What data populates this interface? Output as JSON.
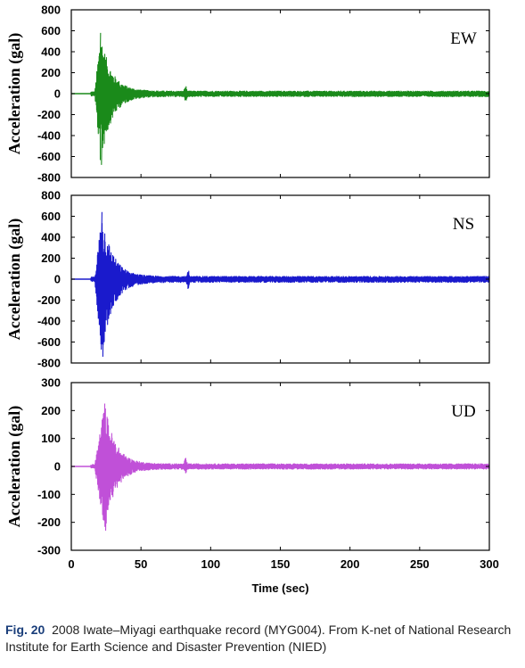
{
  "chart_data": {
    "type": "line",
    "xlabel": "Time (sec)",
    "xlim": [
      0,
      300
    ],
    "xticks": [
      "0",
      "50",
      "100",
      "150",
      "200",
      "250",
      "300"
    ],
    "panels": [
      {
        "component": "EW",
        "ylabel": "Acceleration (gal)",
        "ylim": [
          -800,
          800
        ],
        "yticks": [
          "800",
          "600",
          "400",
          "200",
          "0",
          "-200",
          "-400",
          "-600",
          "-800"
        ],
        "color": "#1a8a1a",
        "peak_positive": 580,
        "peak_negative": -680,
        "peak_time": 21,
        "record_end": 300,
        "secondary_event_time": 82
      },
      {
        "component": "NS",
        "ylabel": "Acceleration (gal)",
        "ylim": [
          -800,
          800
        ],
        "yticks": [
          "800",
          "600",
          "400",
          "200",
          "0",
          "-200",
          "-400",
          "-600",
          "-800"
        ],
        "color": "#1a1acc",
        "peak_positive": 640,
        "peak_negative": -740,
        "peak_time": 22,
        "record_end": 300,
        "secondary_event_time": 84
      },
      {
        "component": "UD",
        "ylabel": "Acceleration (gal)",
        "ylim": [
          -300,
          300
        ],
        "yticks": [
          "300",
          "200",
          "100",
          "0",
          "-100",
          "-200",
          "-300"
        ],
        "color": "#c050d8",
        "peak_positive": 225,
        "peak_negative": -230,
        "peak_time": 24,
        "record_end": 300,
        "secondary_event_time": 82
      }
    ]
  },
  "caption": {
    "fig_label": "Fig. 20",
    "text": "2008 Iwate–Miyagi earthquake record (MYG004). From K-net of National Research Institute for Earth Science and Disaster Prevention (NIED)"
  }
}
